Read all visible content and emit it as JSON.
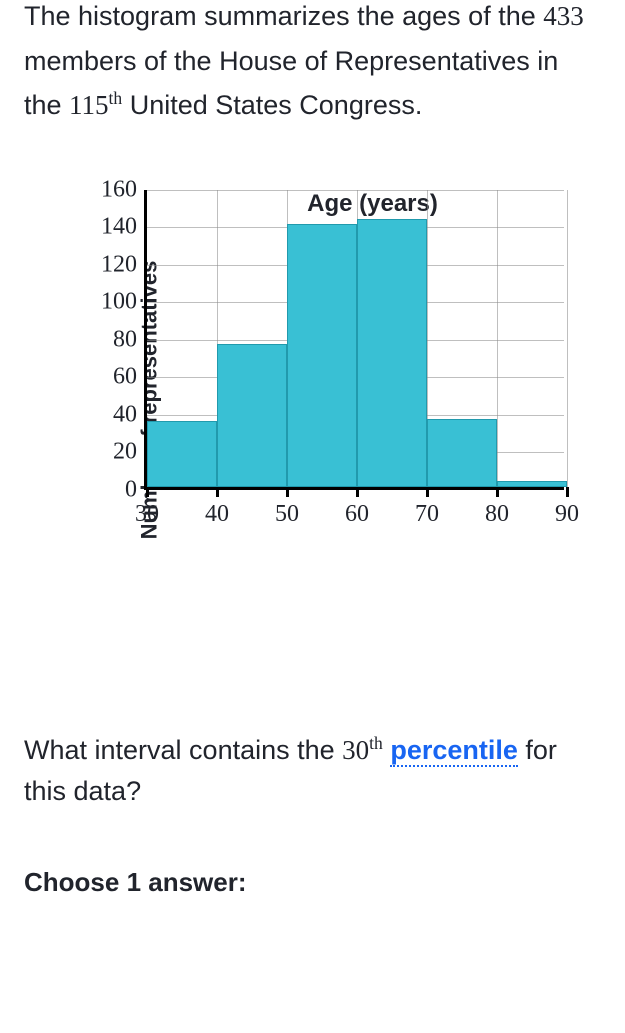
{
  "intro": {
    "part1": "The histogram summarizes the ages of the ",
    "member_count": "433",
    "part2": " members of the House of Representatives in the ",
    "congress_number": "115",
    "ordinal_suffix": "th",
    "part3": " United States Congress."
  },
  "chart": {
    "type": "histogram",
    "ylabel": "Number of representatives",
    "xlabel": "Age (years)",
    "y": {
      "min": 0,
      "max": 160,
      "step": 20
    },
    "x": {
      "min": 30,
      "max": 90,
      "step": 10
    },
    "bins": [
      {
        "from": 30,
        "to": 40,
        "value": 35
      },
      {
        "from": 40,
        "to": 50,
        "value": 76
      },
      {
        "from": 50,
        "to": 60,
        "value": 140
      },
      {
        "from": 60,
        "to": 70,
        "value": 143
      },
      {
        "from": 70,
        "to": 80,
        "value": 36
      },
      {
        "from": 80,
        "to": 90,
        "value": 3
      }
    ],
    "colors": {
      "bar_fill": "#39c0d4",
      "bar_stroke": "#219aad",
      "axis": "#000000",
      "grid": "#8a8a8a",
      "background": "#ffffff"
    },
    "bar_stroke_width": 1,
    "axis_width": 3,
    "label_fontsize": 22,
    "tick_fontsize": 24,
    "tick_fontfamily": "Times New Roman"
  },
  "question": {
    "part1": "What interval contains the ",
    "percentile_number": "30",
    "ordinal_suffix": "th",
    "link_term": "percentile",
    "part2": " for this data?"
  },
  "prompt": "Choose 1 answer:"
}
